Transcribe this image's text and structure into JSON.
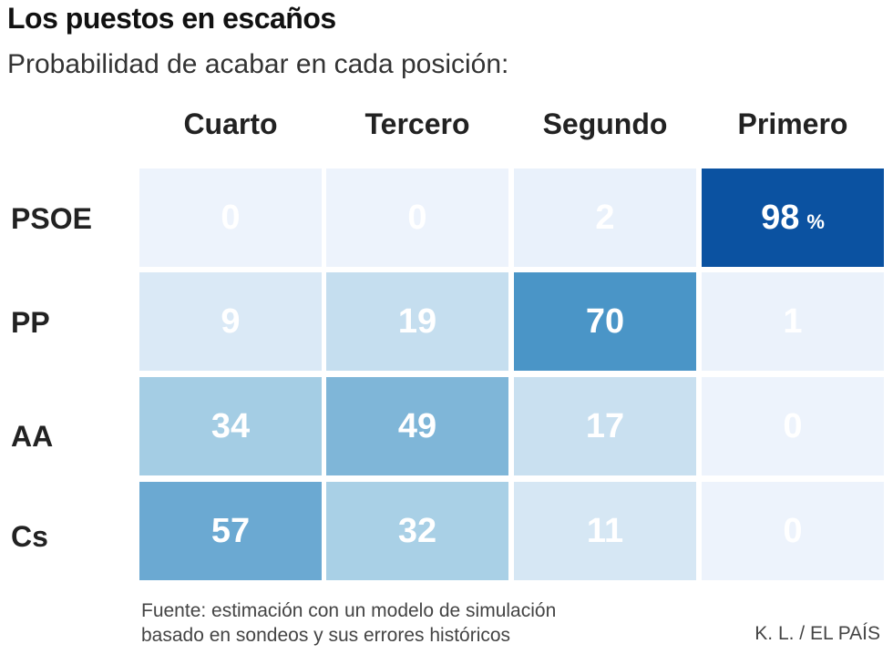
{
  "title": "Los puestos en escaños",
  "subtitle": "Probabilidad de acabar en cada posición:",
  "chart_data": {
    "type": "heatmap",
    "title": "Los puestos en escaños",
    "subtitle": "Probabilidad de acabar en cada posición:",
    "columns": [
      "Cuarto",
      "Tercero",
      "Segundo",
      "Primero"
    ],
    "rows": [
      "PSOE",
      "PP",
      "AA",
      "Cs"
    ],
    "values": [
      [
        0,
        0,
        2,
        98
      ],
      [
        9,
        19,
        70,
        1
      ],
      [
        34,
        49,
        17,
        0
      ],
      [
        57,
        32,
        11,
        0
      ]
    ],
    "unit_label": "%",
    "colors": {
      "low": "#edf3fc",
      "mid": "#a9d0e6",
      "high": "#4a95c7",
      "max": "#0b52a1"
    }
  },
  "source_lines": [
    "Fuente: estimación con un modelo de simulación",
    "basado en sondeos y sus errores históricos"
  ],
  "credit": "K. L. / EL PAÍS"
}
